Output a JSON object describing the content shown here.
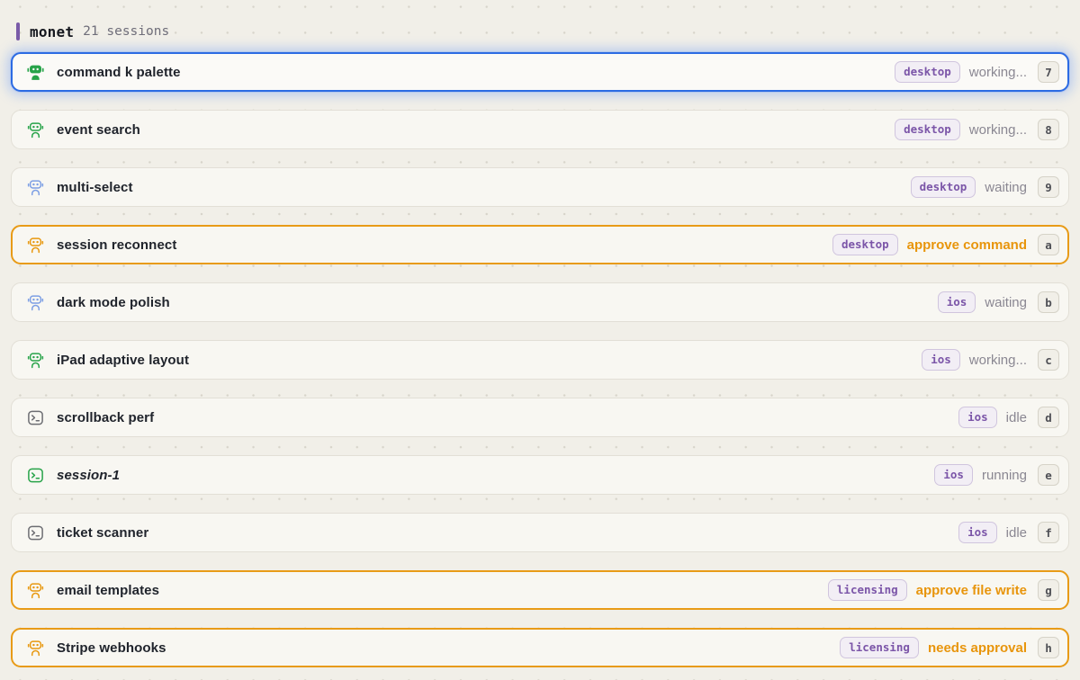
{
  "header": {
    "title": "monet",
    "subtitle": "21 sessions",
    "accent_color": "#7a5ba8"
  },
  "rows": [
    {
      "title": "command k palette",
      "icon": "robot",
      "icon_style": "solid",
      "icon_color": "green",
      "badge": "desktop",
      "status": "working...",
      "status_kind": "muted",
      "key": "7",
      "variant": "selected"
    },
    {
      "title": "event search",
      "icon": "robot",
      "icon_style": "outline",
      "icon_color": "green",
      "badge": "desktop",
      "status": "working...",
      "status_kind": "muted",
      "key": "8",
      "variant": "default"
    },
    {
      "title": "multi-select",
      "icon": "robot",
      "icon_style": "outline",
      "icon_color": "blue",
      "badge": "desktop",
      "status": "waiting",
      "status_kind": "muted",
      "key": "9",
      "variant": "default"
    },
    {
      "title": "session reconnect",
      "icon": "robot",
      "icon_style": "outline",
      "icon_color": "orange",
      "badge": "desktop",
      "status": "approve command",
      "status_kind": "approval",
      "key": "a",
      "variant": "approval"
    },
    {
      "title": "dark mode polish",
      "icon": "robot",
      "icon_style": "outline",
      "icon_color": "blue",
      "badge": "ios",
      "status": "waiting",
      "status_kind": "muted",
      "key": "b",
      "variant": "default"
    },
    {
      "title": "iPad adaptive layout",
      "icon": "robot",
      "icon_style": "outline",
      "icon_color": "green",
      "badge": "ios",
      "status": "working...",
      "status_kind": "muted",
      "key": "c",
      "variant": "default"
    },
    {
      "title": "scrollback perf",
      "icon": "terminal",
      "icon_style": "outline",
      "icon_color": "gray",
      "badge": "ios",
      "status": "idle",
      "status_kind": "muted",
      "key": "d",
      "variant": "default"
    },
    {
      "title": "session-1",
      "icon": "terminal",
      "icon_style": "outline",
      "icon_color": "green",
      "badge": "ios",
      "status": "running",
      "status_kind": "muted",
      "key": "e",
      "variant": "default",
      "title_italic": true
    },
    {
      "title": "ticket scanner",
      "icon": "terminal",
      "icon_style": "outline",
      "icon_color": "gray",
      "badge": "ios",
      "status": "idle",
      "status_kind": "muted",
      "key": "f",
      "variant": "default"
    },
    {
      "title": "email templates",
      "icon": "robot",
      "icon_style": "outline",
      "icon_color": "orange",
      "badge": "licensing",
      "status": "approve file write",
      "status_kind": "approval",
      "key": "g",
      "variant": "approval"
    },
    {
      "title": "Stripe webhooks",
      "icon": "robot",
      "icon_style": "outline",
      "icon_color": "orange",
      "badge": "licensing",
      "status": "needs approval",
      "status_kind": "approval",
      "key": "h",
      "variant": "approval"
    }
  ],
  "colors": {
    "page_background": "#f1efe8",
    "row_background": "#f8f7f2",
    "row_border": "#e2dfd6",
    "selected_border": "#2c6be3",
    "approval_border": "#e89b17",
    "badge_text": "#7b55a8",
    "status_muted": "#8a8792",
    "status_approval": "#e8950c",
    "icon_green": "#27a349",
    "icon_blue": "#7d9fe4",
    "icon_orange": "#e8980f",
    "icon_gray": "#6c6d72"
  }
}
